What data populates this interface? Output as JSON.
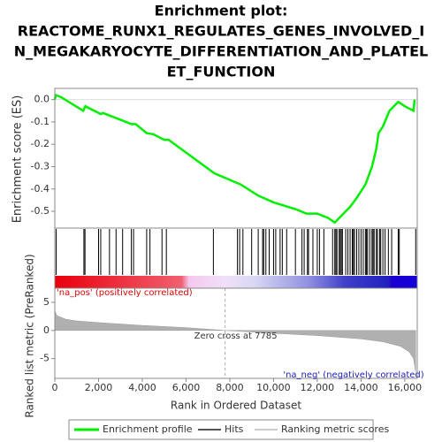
{
  "title": [
    "Enrichment plot:",
    "REACTOME_RUNX1_REGULATES_GENES_INVOLVED_I",
    "N_MEGAKARYOCYTE_DIFFERENTIATION_AND_PLATEL",
    "ET_FUNCTION"
  ],
  "chart_data": [
    {
      "type": "line",
      "ylabel": "Enrichment score (ES)",
      "color": "#00ee00",
      "xlim": [
        0,
        16570
      ],
      "ylim": [
        -0.575,
        0.05
      ],
      "yticks": [
        {
          "value": 0,
          "label": "0.0"
        },
        -0.1,
        -0.2,
        -0.3,
        -0.4,
        -0.5
      ],
      "x": [
        0,
        50,
        300,
        1300,
        1400,
        2000,
        2100,
        2200,
        3000,
        3500,
        3700,
        4200,
        4500,
        5000,
        5200,
        7300,
        8500,
        9300,
        10000,
        11000,
        11500,
        12000,
        12500,
        12800,
        13000,
        13500,
        13800,
        14200,
        14500,
        14700,
        14800,
        15000,
        15300,
        15500,
        15700,
        16000,
        16400,
        16450
      ],
      "values": [
        0.0,
        0.02,
        0.01,
        -0.05,
        -0.03,
        -0.06,
        -0.065,
        -0.06,
        -0.09,
        -0.11,
        -0.11,
        -0.15,
        -0.155,
        -0.18,
        -0.18,
        -0.33,
        -0.38,
        -0.43,
        -0.46,
        -0.49,
        -0.51,
        -0.51,
        -0.53,
        -0.55,
        -0.53,
        -0.48,
        -0.44,
        -0.38,
        -0.3,
        -0.22,
        -0.15,
        -0.12,
        -0.05,
        -0.03,
        -0.01,
        -0.03,
        -0.05,
        0.0
      ]
    },
    {
      "type": "hits",
      "color": "#000000",
      "xlim": [
        0,
        16570
      ],
      "x": [
        60,
        1330,
        1380,
        2000,
        2100,
        2500,
        2800,
        3100,
        3500,
        3600,
        4200,
        4350,
        4900,
        5100,
        7250,
        8350,
        8450,
        8600,
        9000,
        9300,
        9500,
        9550,
        9650,
        9800,
        10000,
        10100,
        10300,
        10400,
        10600,
        11000,
        11300,
        11400,
        11550,
        11600,
        11800,
        12000,
        12100,
        12300,
        12700,
        12800,
        12850,
        12900,
        13000,
        13050,
        13100,
        13150,
        13300,
        13400,
        13500,
        13600,
        13650,
        13700,
        13800,
        13900,
        14000,
        14100,
        14200,
        14250,
        14300,
        14400,
        14500,
        14550,
        14600,
        14700,
        14750,
        14850,
        14900,
        15000,
        15100,
        15250,
        15400,
        15700,
        15750,
        16500
      ]
    },
    {
      "type": "area",
      "ylabel": "Ranked list metric (PreRanked)",
      "xlabel": "Rank in Ordered Dataset",
      "color": "#b0b0b0",
      "xlim": [
        0,
        16570
      ],
      "ylim": [
        -8.5,
        7.5
      ],
      "xticks": [
        0,
        {
          "value": 2000,
          "label": "2,000"
        },
        {
          "value": 4000,
          "label": "4,000"
        },
        {
          "value": 6000,
          "label": "6,000"
        },
        {
          "value": 8000,
          "label": "8,000"
        },
        {
          "value": 10000,
          "label": "10,000"
        },
        {
          "value": 12000,
          "label": "12,000"
        },
        {
          "value": 14000,
          "label": "14,000"
        },
        {
          "value": 16000,
          "label": "16,000"
        }
      ],
      "yticks": [
        5,
        0,
        -5
      ],
      "x": [
        0,
        100,
        500,
        1000,
        2000,
        4000,
        6000,
        7785,
        10000,
        12000,
        14000,
        15000,
        15800,
        16200,
        16400,
        16500
      ],
      "values": [
        3.5,
        2.6,
        2.0,
        1.7,
        1.4,
        0.9,
        0.5,
        0,
        -0.5,
        -0.9,
        -1.5,
        -2.0,
        -2.8,
        -3.8,
        -5,
        -7.5
      ],
      "zero_cross": 7785,
      "zero_cross_label": "Zero cross at 7785",
      "pos_label": "'na_pos' (positively correlated)",
      "neg_label": "'na_neg' (negatively correlated)"
    }
  ],
  "legend": [
    "Enrichment profile",
    "Hits",
    "Ranking metric scores"
  ]
}
